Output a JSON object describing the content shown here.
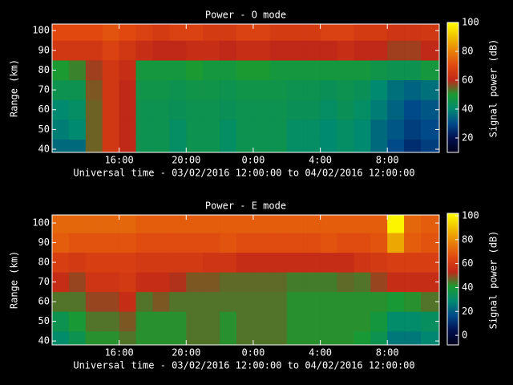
{
  "chart_data": [
    {
      "type": "heatmap",
      "title": "Power - O mode",
      "ylabel": "Range (km)",
      "xlabel": "Universal time - 03/02/2016 12:00:00 to 04/02/2016 12:00:00",
      "xbins": [
        12,
        13,
        14,
        15,
        16,
        17,
        18,
        19,
        20,
        21,
        22,
        23,
        24,
        25,
        26,
        27,
        28,
        29,
        30,
        31,
        32,
        33,
        34,
        35.1
      ],
      "ybins": [
        38.4,
        45,
        55,
        65,
        75,
        85,
        95,
        103.3
      ],
      "z": [
        [
          35,
          35,
          55,
          65,
          60,
          45,
          45,
          42,
          45,
          45,
          42,
          45,
          45,
          45,
          42,
          42,
          40,
          42,
          40,
          35,
          30,
          25,
          28
        ],
        [
          38,
          40,
          55,
          65,
          60,
          45,
          45,
          42,
          45,
          45,
          42,
          45,
          45,
          45,
          42,
          42,
          40,
          42,
          40,
          35,
          32,
          28,
          30
        ],
        [
          40,
          42,
          55,
          65,
          60,
          45,
          45,
          44,
          45,
          45,
          44,
          45,
          45,
          45,
          44,
          44,
          42,
          44,
          42,
          38,
          34,
          30,
          32
        ],
        [
          45,
          45,
          56,
          65,
          60,
          46,
          46,
          45,
          46,
          46,
          45,
          46,
          46,
          46,
          45,
          45,
          44,
          45,
          44,
          40,
          36,
          34,
          36
        ],
        [
          50,
          52,
          58,
          65,
          62,
          48,
          48,
          48,
          50,
          48,
          48,
          50,
          50,
          48,
          48,
          48,
          48,
          48,
          48,
          46,
          45,
          45,
          48
        ],
        [
          65,
          65,
          65,
          68,
          65,
          62,
          60,
          60,
          62,
          62,
          60,
          62,
          62,
          60,
          60,
          60,
          60,
          62,
          60,
          60,
          58,
          58,
          60
        ],
        [
          70,
          70,
          70,
          72,
          70,
          68,
          66,
          68,
          68,
          66,
          66,
          68,
          68,
          66,
          66,
          66,
          68,
          68,
          66,
          66,
          64,
          64,
          65
        ]
      ],
      "xlim": [
        12,
        35.1
      ],
      "ylim": [
        38.4,
        103.3
      ],
      "xticks": [
        {
          "value": 16,
          "label": "16:00"
        },
        {
          "value": 20,
          "label": "20:00"
        },
        {
          "value": 24,
          "label": "0:00"
        },
        {
          "value": 28,
          "label": "4:00"
        },
        {
          "value": 32,
          "label": "8:00"
        }
      ],
      "yticks": [
        40,
        50,
        60,
        70,
        80,
        90,
        100
      ],
      "colorbar": {
        "label": "Signal power (dB)",
        "lim": [
          10,
          100
        ],
        "ticks": [
          20,
          40,
          60,
          80,
          100
        ]
      },
      "colorscale": [
        "#000018",
        "#001050",
        "#004a8a",
        "#008a70",
        "#1a9a30",
        "#c02818",
        "#e04810",
        "#e88008",
        "#f0c000",
        "#ffff00"
      ]
    },
    {
      "type": "heatmap",
      "title": "Power - E mode",
      "ylabel": "Range (km)",
      "xlabel": "Universal time - 03/02/2016 12:00:00 to 04/02/2016 12:00:00",
      "xbins": [
        12,
        13,
        14,
        15,
        16,
        17,
        18,
        19,
        20,
        21,
        22,
        23,
        24,
        25,
        26,
        27,
        28,
        29,
        30,
        31,
        32,
        33,
        34,
        35.1
      ],
      "ybins": [
        38,
        45,
        55,
        65,
        75,
        85,
        95,
        104.1
      ],
      "z": [
        [
          30,
          35,
          42,
          42,
          45,
          42,
          42,
          42,
          45,
          45,
          42,
          45,
          45,
          45,
          42,
          42,
          42,
          42,
          40,
          35,
          25,
          25,
          28
        ],
        [
          35,
          40,
          45,
          45,
          48,
          42,
          42,
          42,
          45,
          45,
          42,
          45,
          45,
          45,
          42,
          42,
          42,
          42,
          42,
          38,
          30,
          30,
          32
        ],
        [
          45,
          45,
          50,
          50,
          55,
          45,
          48,
          45,
          45,
          45,
          45,
          45,
          45,
          45,
          42,
          42,
          42,
          42,
          42,
          42,
          40,
          42,
          45
        ],
        [
          55,
          50,
          58,
          58,
          60,
          55,
          55,
          52,
          48,
          48,
          46,
          46,
          46,
          46,
          44,
          44,
          44,
          46,
          45,
          50,
          55,
          55,
          55
        ],
        [
          62,
          60,
          62,
          62,
          62,
          60,
          60,
          60,
          60,
          58,
          58,
          55,
          55,
          55,
          55,
          55,
          55,
          55,
          58,
          60,
          62,
          62,
          62
        ],
        [
          70,
          68,
          68,
          68,
          68,
          66,
          66,
          66,
          66,
          66,
          68,
          66,
          66,
          66,
          66,
          66,
          68,
          66,
          66,
          68,
          85,
          70,
          68
        ],
        [
          72,
          72,
          72,
          72,
          72,
          70,
          70,
          70,
          70,
          70,
          70,
          70,
          70,
          70,
          70,
          70,
          70,
          70,
          70,
          70,
          100,
          72,
          70
        ]
      ],
      "xlim": [
        12,
        35.1
      ],
      "ylim": [
        38,
        104.1
      ],
      "xticks": [
        {
          "value": 16,
          "label": "16:00"
        },
        {
          "value": 20,
          "label": "20:00"
        },
        {
          "value": 24,
          "label": "0:00"
        },
        {
          "value": 28,
          "label": "4:00"
        },
        {
          "value": 32,
          "label": "8:00"
        }
      ],
      "yticks": [
        40,
        50,
        60,
        70,
        80,
        90,
        100
      ],
      "colorbar": {
        "label": "Signal power (dB)",
        "lim": [
          -8,
          102
        ],
        "ticks": [
          0,
          20,
          40,
          60,
          80,
          100
        ]
      },
      "colorscale": [
        "#000018",
        "#001050",
        "#004a8a",
        "#008a70",
        "#1a9a30",
        "#c02818",
        "#e04810",
        "#e88008",
        "#f0c000",
        "#ffff00"
      ]
    }
  ]
}
